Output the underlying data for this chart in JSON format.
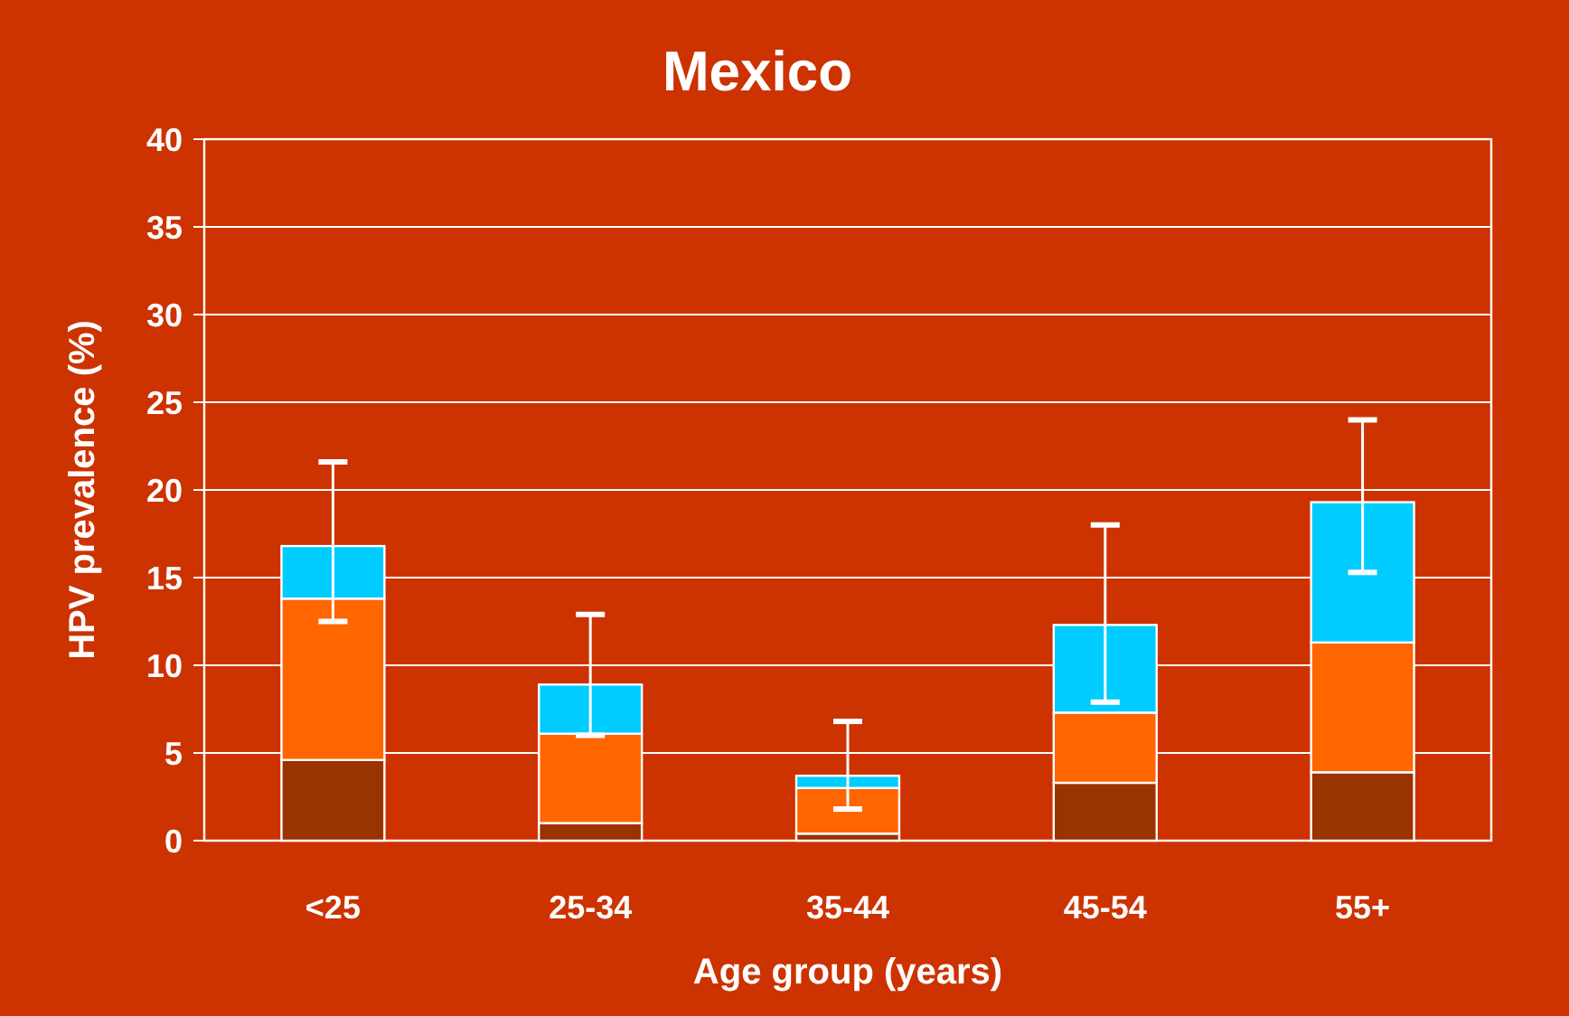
{
  "chart_data": {
    "type": "bar",
    "title": "Mexico",
    "xlabel": "Age group (years)",
    "ylabel": "HPV prevalence (%)",
    "categories": [
      "<25",
      "25-34",
      "35-44",
      "45-54",
      "55+"
    ],
    "stacked": true,
    "series": [
      {
        "color": "#993300",
        "values": [
          4.6,
          1.0,
          0.4,
          3.3,
          3.9
        ]
      },
      {
        "color": "#ff6600",
        "values": [
          9.2,
          5.1,
          2.6,
          4.0,
          7.4
        ]
      },
      {
        "color": "#00ccff",
        "values": [
          3.0,
          2.8,
          0.7,
          5.0,
          8.0
        ],
        "errors": [
          [
            12.5,
            21.6
          ],
          [
            6.0,
            12.9
          ],
          [
            1.8,
            6.8
          ],
          [
            7.9,
            18.0
          ],
          [
            15.3,
            24.0
          ]
        ]
      }
    ],
    "ylim": [
      0,
      40
    ],
    "yticks": [
      0,
      5,
      10,
      15,
      20,
      25,
      30,
      35,
      40
    ],
    "grid": "y"
  }
}
